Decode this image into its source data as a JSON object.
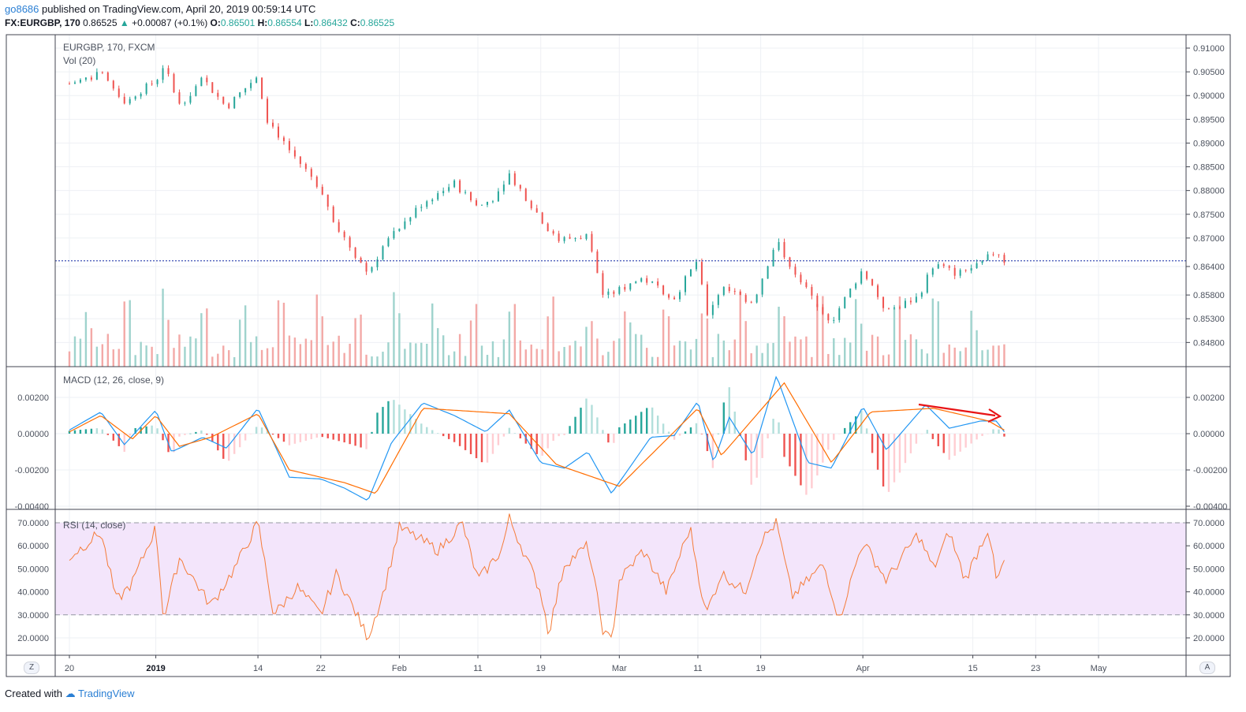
{
  "header": {
    "user": "go8686",
    "published": "published on TradingView.com, April 20, 2019 00:59:14 UTC",
    "symbol": "FX:EURGBP, 170",
    "last": "0.86525",
    "change": "+0.00087 (+0.1%)",
    "o_label": "O:",
    "o": "0.86501",
    "h_label": "H:",
    "h": "0.86554",
    "l_label": "L:",
    "l": "0.86432",
    "c_label": "C:",
    "c": "0.86525"
  },
  "footer": {
    "created": "Created with",
    "brand": "TradingView"
  },
  "corners": {
    "left": "Z",
    "right": "A"
  },
  "colors": {
    "up": "#26a69a",
    "down": "#ef5350",
    "macd": "#2196f3",
    "signal": "#ff6d00",
    "rsi": "#f57c39",
    "rsi_band": "#f3e5fb",
    "hline": "#3f51b5",
    "arrow": "#e81416"
  },
  "chart_data": [
    {
      "type": "candlestick",
      "title": "EURGBP, 170, FXCM",
      "volume_label": "Vol (20)",
      "x_ticks": [
        "20",
        "2019",
        "14",
        "22",
        "Feb",
        "11",
        "19",
        "Mar",
        "11",
        "19",
        "Apr",
        "15",
        "23",
        "May"
      ],
      "y_ticks": [
        "0.91000",
        "0.90500",
        "0.90000",
        "0.89500",
        "0.89000",
        "0.88500",
        "0.88000",
        "0.87500",
        "0.87000",
        "0.86400",
        "0.85800",
        "0.85300",
        "0.84800"
      ],
      "ylim": [
        0.8475,
        0.912
      ],
      "horizontal_line": 0.8652,
      "close_path": [
        {
          "x": "Dec 20",
          "y": 0.9025
        },
        {
          "x": "Dec 24",
          "y": 0.9045
        },
        {
          "x": "Dec 27",
          "y": 0.899
        },
        {
          "x": "Dec 31",
          "y": 0.903
        },
        {
          "x": "Jan 2",
          "y": 0.9065
        },
        {
          "x": "Jan 4",
          "y": 0.898
        },
        {
          "x": "Jan 7",
          "y": 0.9035
        },
        {
          "x": "Jan 10",
          "y": 0.8975
        },
        {
          "x": "Jan 14",
          "y": 0.9045
        },
        {
          "x": "Jan 15",
          "y": 0.8955
        },
        {
          "x": "Jan 18",
          "y": 0.8885
        },
        {
          "x": "Jan 22",
          "y": 0.8805
        },
        {
          "x": "Jan 24",
          "y": 0.8725
        },
        {
          "x": "Jan 28",
          "y": 0.8625
        },
        {
          "x": "Jan 30",
          "y": 0.8685
        },
        {
          "x": "Feb 4",
          "y": 0.8775
        },
        {
          "x": "Feb 8",
          "y": 0.8815
        },
        {
          "x": "Feb 11",
          "y": 0.8765
        },
        {
          "x": "Feb 14",
          "y": 0.8795
        },
        {
          "x": "Feb 15",
          "y": 0.8835
        },
        {
          "x": "Feb 18",
          "y": 0.8765
        },
        {
          "x": "Feb 21",
          "y": 0.8695
        },
        {
          "x": "Feb 25",
          "y": 0.8705
        },
        {
          "x": "Feb 27",
          "y": 0.8575
        },
        {
          "x": "Mar 4",
          "y": 0.8615
        },
        {
          "x": "Mar 8",
          "y": 0.8575
        },
        {
          "x": "Mar 11",
          "y": 0.8655
        },
        {
          "x": "Mar 12",
          "y": 0.8535
        },
        {
          "x": "Mar 14",
          "y": 0.8595
        },
        {
          "x": "Mar 18",
          "y": 0.8565
        },
        {
          "x": "Mar 21",
          "y": 0.8695
        },
        {
          "x": "Mar 22",
          "y": 0.8665
        },
        {
          "x": "Mar 25",
          "y": 0.8585
        },
        {
          "x": "Mar 28",
          "y": 0.8525
        },
        {
          "x": "Apr 1",
          "y": 0.8635
        },
        {
          "x": "Apr 4",
          "y": 0.8545
        },
        {
          "x": "Apr 8",
          "y": 0.8575
        },
        {
          "x": "Apr 10",
          "y": 0.8645
        },
        {
          "x": "Apr 13",
          "y": 0.8625
        },
        {
          "x": "Apr 16",
          "y": 0.8645
        },
        {
          "x": "Apr 18",
          "y": 0.8675
        },
        {
          "x": "Apr 19",
          "y": 0.8652
        }
      ]
    },
    {
      "type": "line",
      "title": "MACD (12, 26, close, 9)",
      "y_ticks": [
        "0.00200",
        "0.00000",
        "-0.00200",
        "-0.00400"
      ],
      "ylim": [
        -0.0042,
        0.0032
      ],
      "macd": [
        {
          "x": "Dec 20",
          "y": 0.0002
        },
        {
          "x": "Dec 24",
          "y": 0.0012
        },
        {
          "x": "Dec 27",
          "y": -0.0006
        },
        {
          "x": "Dec 31",
          "y": 0.0013
        },
        {
          "x": "Jan 3",
          "y": -0.001
        },
        {
          "x": "Jan 7",
          "y": -0.0002
        },
        {
          "x": "Jan 10",
          "y": -0.0008
        },
        {
          "x": "Jan 14",
          "y": 0.0014
        },
        {
          "x": "Jan 18",
          "y": -0.0024
        },
        {
          "x": "Jan 22",
          "y": -0.0025
        },
        {
          "x": "Jan 25",
          "y": -0.003
        },
        {
          "x": "Jan 28",
          "y": -0.0037
        },
        {
          "x": "Jan 31",
          "y": -0.0005
        },
        {
          "x": "Feb 4",
          "y": 0.0017
        },
        {
          "x": "Feb 8",
          "y": 0.001
        },
        {
          "x": "Feb 12",
          "y": 0.0001
        },
        {
          "x": "Feb 15",
          "y": 0.0013
        },
        {
          "x": "Feb 19",
          "y": -0.0016
        },
        {
          "x": "Feb 22",
          "y": -0.0019
        },
        {
          "x": "Feb 25",
          "y": -0.001
        },
        {
          "x": "Feb 28",
          "y": -0.0033
        },
        {
          "x": "Mar 5",
          "y": -0.0002
        },
        {
          "x": "Mar 8",
          "y": -0.0001
        },
        {
          "x": "Mar 11",
          "y": 0.0018
        },
        {
          "x": "Mar 13",
          "y": -0.0016
        },
        {
          "x": "Mar 15",
          "y": 0.0009
        },
        {
          "x": "Mar 18",
          "y": -0.0012
        },
        {
          "x": "Mar 21",
          "y": 0.0032
        },
        {
          "x": "Mar 25",
          "y": -0.0016
        },
        {
          "x": "Mar 28",
          "y": -0.0019
        },
        {
          "x": "Apr 1",
          "y": 0.0015
        },
        {
          "x": "Apr 4",
          "y": -0.0009
        },
        {
          "x": "Apr 9",
          "y": 0.0016
        },
        {
          "x": "Apr 12",
          "y": 0.0003
        },
        {
          "x": "Apr 16",
          "y": 0.0007
        },
        {
          "x": "Apr 18",
          "y": 0.0007
        },
        {
          "x": "Apr 19",
          "y": 0.0001
        }
      ],
      "signal": [
        {
          "x": "Dec 20",
          "y": 0.0001
        },
        {
          "x": "Dec 24",
          "y": 0.001
        },
        {
          "x": "Dec 28",
          "y": -0.0003
        },
        {
          "x": "Jan 1",
          "y": 0.001
        },
        {
          "x": "Jan 4",
          "y": -0.0007
        },
        {
          "x": "Jan 8",
          "y": -0.0002
        },
        {
          "x": "Jan 14",
          "y": 0.0011
        },
        {
          "x": "Jan 18",
          "y": -0.002
        },
        {
          "x": "Jan 25",
          "y": -0.0027
        },
        {
          "x": "Jan 29",
          "y": -0.0033
        },
        {
          "x": "Feb 4",
          "y": 0.0014
        },
        {
          "x": "Feb 15",
          "y": 0.0011
        },
        {
          "x": "Feb 21",
          "y": -0.0017
        },
        {
          "x": "Mar 1",
          "y": -0.0029
        },
        {
          "x": "Mar 11",
          "y": 0.0014
        },
        {
          "x": "Mar 14",
          "y": -0.0012
        },
        {
          "x": "Mar 22",
          "y": 0.0028
        },
        {
          "x": "Mar 28",
          "y": -0.0016
        },
        {
          "x": "Apr 2",
          "y": 0.0012
        },
        {
          "x": "Apr 10",
          "y": 0.0014
        },
        {
          "x": "Apr 17",
          "y": 0.0007
        },
        {
          "x": "Apr 19",
          "y": 0.0002
        }
      ]
    },
    {
      "type": "line",
      "title": "RSI (14, close)",
      "y_ticks": [
        "70.0000",
        "60.0000",
        "50.0000",
        "40.0000",
        "30.0000",
        "20.0000"
      ],
      "ylim": [
        15,
        73
      ],
      "band": [
        30,
        70
      ],
      "rsi": [
        {
          "x": "Dec 20",
          "y": 55
        },
        {
          "x": "Dec 24",
          "y": 66
        },
        {
          "x": "Dec 26",
          "y": 36
        },
        {
          "x": "Dec 28",
          "y": 44
        },
        {
          "x": "Dec 31",
          "y": 68
        },
        {
          "x": "Jan 2",
          "y": 28
        },
        {
          "x": "Jan 4",
          "y": 55
        },
        {
          "x": "Jan 8",
          "y": 34
        },
        {
          "x": "Jan 11",
          "y": 50
        },
        {
          "x": "Jan 14",
          "y": 70
        },
        {
          "x": "Jan 16",
          "y": 30
        },
        {
          "x": "Jan 19",
          "y": 42
        },
        {
          "x": "Jan 22",
          "y": 30
        },
        {
          "x": "Jan 24",
          "y": 48
        },
        {
          "x": "Jan 28",
          "y": 20
        },
        {
          "x": "Jan 30",
          "y": 40
        },
        {
          "x": "Feb 1",
          "y": 68
        },
        {
          "x": "Feb 6",
          "y": 58
        },
        {
          "x": "Feb 9",
          "y": 70
        },
        {
          "x": "Feb 11",
          "y": 45
        },
        {
          "x": "Feb 14",
          "y": 58
        },
        {
          "x": "Feb 15",
          "y": 72
        },
        {
          "x": "Feb 19",
          "y": 40
        },
        {
          "x": "Feb 20",
          "y": 22
        },
        {
          "x": "Feb 22",
          "y": 52
        },
        {
          "x": "Feb 25",
          "y": 60
        },
        {
          "x": "Feb 27",
          "y": 22
        },
        {
          "x": "Feb 28",
          "y": 19
        },
        {
          "x": "Mar 1",
          "y": 45
        },
        {
          "x": "Mar 4",
          "y": 58
        },
        {
          "x": "Mar 7",
          "y": 40
        },
        {
          "x": "Mar 10",
          "y": 68
        },
        {
          "x": "Mar 12",
          "y": 30
        },
        {
          "x": "Mar 14",
          "y": 48
        },
        {
          "x": "Mar 17",
          "y": 40
        },
        {
          "x": "Mar 19",
          "y": 62
        },
        {
          "x": "Mar 21",
          "y": 70
        },
        {
          "x": "Mar 23",
          "y": 38
        },
        {
          "x": "Mar 27",
          "y": 52
        },
        {
          "x": "Mar 29",
          "y": 28
        },
        {
          "x": "Apr 1",
          "y": 62
        },
        {
          "x": "Apr 4",
          "y": 45
        },
        {
          "x": "Apr 8",
          "y": 65
        },
        {
          "x": "Apr 10",
          "y": 50
        },
        {
          "x": "Apr 12",
          "y": 66
        },
        {
          "x": "Apr 14",
          "y": 45
        },
        {
          "x": "Apr 17",
          "y": 68
        },
        {
          "x": "Apr 18",
          "y": 44
        },
        {
          "x": "Apr 19",
          "y": 53
        }
      ]
    }
  ]
}
